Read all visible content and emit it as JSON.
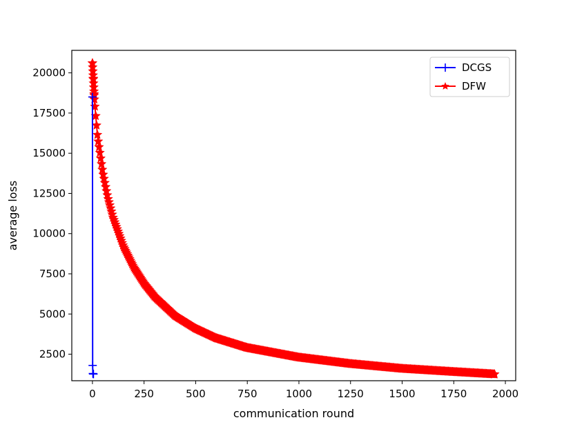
{
  "chart_data": {
    "type": "line",
    "title": "",
    "xlabel": "communication round",
    "ylabel": "average loss",
    "xlim": [
      -100,
      2050
    ],
    "ylim": [
      850,
      21400
    ],
    "xticks": [
      0,
      250,
      500,
      750,
      1000,
      1250,
      1500,
      1750,
      2000
    ],
    "yticks": [
      2500,
      5000,
      7500,
      10000,
      12500,
      15000,
      17500,
      20000
    ],
    "grid": false,
    "legend_position": "top-right",
    "series": [
      {
        "name": "DCGS",
        "color": "#0000ff",
        "marker": "plus",
        "x": [
          0,
          1,
          2,
          3,
          4,
          5
        ],
        "y": [
          18500,
          1800,
          1300,
          1280,
          1270,
          1265
        ]
      },
      {
        "name": "DFW",
        "color": "#ff0000",
        "marker": "star",
        "x": [
          0,
          10,
          25,
          50,
          75,
          100,
          150,
          200,
          250,
          300,
          400,
          500,
          600,
          750,
          1000,
          1250,
          1500,
          1750,
          1950
        ],
        "y": [
          20600,
          18200,
          16000,
          13800,
          12200,
          11000,
          9200,
          7900,
          6900,
          6100,
          4900,
          4100,
          3500,
          2900,
          2300,
          1900,
          1600,
          1400,
          1250
        ]
      }
    ]
  }
}
